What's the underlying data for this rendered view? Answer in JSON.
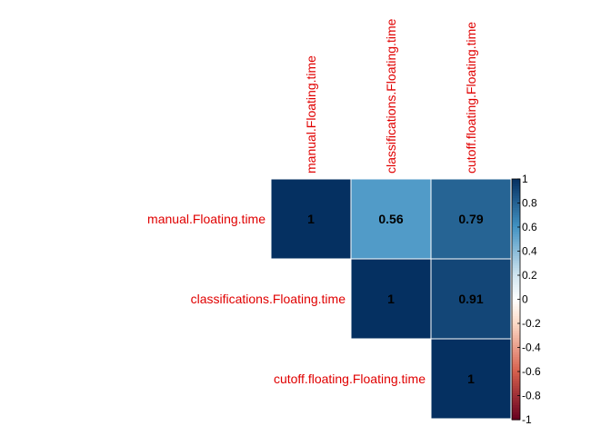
{
  "chart_data": {
    "type": "heatmap",
    "variables": [
      "manual.Floating.time",
      "classifications.Floating.time",
      "cutoff.floating.Floating.time"
    ],
    "matrix_shape": "upper-triangular",
    "cells": [
      {
        "row": 0,
        "col": 0,
        "value": 1,
        "label": "1"
      },
      {
        "row": 0,
        "col": 1,
        "value": 0.56,
        "label": "0.56"
      },
      {
        "row": 0,
        "col": 2,
        "value": 0.79,
        "label": "0.79"
      },
      {
        "row": 1,
        "col": 1,
        "value": 1,
        "label": "1"
      },
      {
        "row": 1,
        "col": 2,
        "value": 0.91,
        "label": "0.91"
      },
      {
        "row": 2,
        "col": 2,
        "value": 1,
        "label": "1"
      }
    ],
    "colorbar": {
      "range": [
        -1,
        1
      ],
      "ticks": [
        1,
        0.8,
        0.6,
        0.4,
        0.2,
        0,
        -0.2,
        -0.4,
        -0.6,
        -0.8,
        -1
      ],
      "tick_labels": [
        "1",
        "0.8",
        "0.6",
        "0.4",
        "0.2",
        "0",
        "-0.2",
        "-0.4",
        "-0.6",
        "-0.8",
        "-1"
      ]
    },
    "colors": {
      "label": "#e00000",
      "neg_strong": "#67001f",
      "neg_mid": "#d6604d",
      "neg_weak": "#fddbc7",
      "neutral": "#ffffff",
      "pos_weak": "#d1e5f0",
      "pos_mid": "#4393c3",
      "pos_strong": "#053061"
    }
  }
}
